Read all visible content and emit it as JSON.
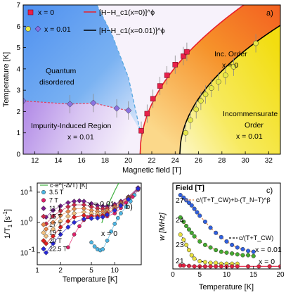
{
  "chart_data": [
    {
      "panel": "a)",
      "type": "phase-diagram",
      "xlabel": "Magnetic field [T]",
      "ylabel": "Temperature [K]",
      "xlim": [
        11,
        33
      ],
      "ylim": [
        0,
        7
      ],
      "xticks": [
        12,
        14,
        16,
        18,
        20,
        22,
        24,
        26,
        28,
        30,
        32
      ],
      "yticks": [
        0,
        1,
        2,
        3,
        4,
        5,
        6,
        7
      ],
      "legend": {
        "markers": [
          {
            "name": "x = 0",
            "marker": "square",
            "color": "#e8204a"
          },
          {
            "name": "x = 0.01",
            "marker": "circle+diamond",
            "color": "#9ac83c"
          }
        ],
        "lines": [
          {
            "name": "[H−H_c1(x=0)]^ϕ",
            "color": "#e8202a"
          },
          {
            "name": "[H−H_c1(x=0.01)]^ϕ",
            "color": "#000000"
          }
        ]
      },
      "regions": [
        {
          "name": "Quantum disordered"
        },
        {
          "name": "Inc. Order x = 0"
        },
        {
          "name": "Incommensurate Order x = 0.01"
        },
        {
          "name": "Impurity-Induced Region x = 0.01"
        }
      ],
      "series": [
        {
          "name": "x = 0",
          "marker": "square",
          "color": "#e8204a",
          "x": [
            21.1,
            21.6,
            22.1,
            22.7,
            23.3,
            24.0,
            24.7,
            25.0
          ],
          "y": [
            1.1,
            1.9,
            2.6,
            3.2,
            3.7,
            4.2,
            4.6,
            4.8
          ]
        },
        {
          "name": "x = 0.01 (circles)",
          "marker": "circle",
          "color": "#e6e84a",
          "x": [
            24.9,
            25.3,
            25.8,
            26.2,
            26.6,
            27.1,
            27.7,
            28.3,
            29.0,
            30.9
          ],
          "y": [
            1.0,
            1.6,
            2.1,
            2.5,
            2.8,
            3.1,
            3.4,
            3.7,
            4.1,
            5.2
          ]
        },
        {
          "name": "x = 0.01 (diamonds)",
          "marker": "diamond",
          "color": "#8a72e0",
          "x": [
            11.0,
            15.0,
            17.0,
            19.0,
            20.0
          ],
          "y": [
            2.5,
            2.35,
            2.4,
            2.15,
            2.05
          ]
        }
      ]
    },
    {
      "panel": "b)",
      "type": "scatter",
      "xlabel": "Temperature [K]",
      "ylabel": "1/T1 [s^-1]",
      "xscale": "log",
      "yscale": "log",
      "xlim": [
        1,
        22
      ],
      "ylim": [
        0.04,
        20
      ],
      "xticks": [
        1,
        2,
        5,
        10
      ],
      "xticklabels": [
        "1",
        "2",
        "5",
        "10"
      ],
      "yticks": [
        0.1,
        1,
        10
      ],
      "yticklabels": [
        "10^-1",
        "10^0",
        "10^1"
      ],
      "fit_label": "c·e^(-Δ/T) [K]",
      "annotations": [
        "x = 0.01",
        "x = 0"
      ],
      "series": [
        {
          "name": "3.5 T",
          "marker": "circle",
          "color": "#4db6e4",
          "x": [
            5,
            5.5,
            6,
            6.5,
            7,
            8,
            9,
            10,
            11,
            12,
            14,
            16,
            18,
            20
          ],
          "y": [
            0.22,
            0.16,
            0.13,
            0.12,
            0.13,
            0.25,
            0.5,
            0.9,
            1.4,
            2.0,
            3.3,
            5.0,
            8.0,
            12
          ]
        },
        {
          "name": "7 T",
          "marker": "circle",
          "color": "#e0206a",
          "x": [
            2.5,
            3,
            3.5,
            4,
            4.5,
            5,
            6,
            7,
            8,
            10,
            12,
            14,
            17,
            20
          ],
          "y": [
            0.15,
            0.4,
            0.75,
            1.2,
            1.5,
            1.7,
            1.7,
            1.6,
            1.6,
            2.0,
            3.0,
            4.5,
            7.0,
            12
          ]
        },
        {
          "name": "11 T",
          "marker": "diamond",
          "color": "#7a1e8c",
          "x": [
            1.3,
            1.6,
            2,
            2.5,
            3,
            3.5,
            4,
            5,
            6,
            7,
            8,
            10,
            12,
            15,
            20
          ],
          "y": [
            1.5,
            2.5,
            3.5,
            4.5,
            5.0,
            5.2,
            5.0,
            4.2,
            3.6,
            3.4,
            3.4,
            4.0,
            5.0,
            7.0,
            14
          ]
        },
        {
          "name": "15 T",
          "marker": "diamond",
          "color": "#cc2a4a",
          "x": [
            1.3,
            1.6,
            2,
            2.5,
            3,
            4,
            5,
            6,
            7,
            8,
            10,
            12,
            15,
            20
          ],
          "y": [
            0.9,
            1.6,
            2.4,
            3.3,
            3.8,
            3.8,
            3.3,
            2.9,
            2.8,
            2.9,
            3.6,
            4.7,
            6.8,
            13
          ]
        },
        {
          "name": "17 T",
          "marker": "diamond",
          "color": "#e8874a",
          "x": [
            1.3,
            1.6,
            2,
            2.5,
            3,
            4,
            5,
            6,
            7,
            8,
            10,
            12,
            15,
            20
          ],
          "y": [
            0.6,
            1.0,
            1.7,
            2.3,
            2.8,
            2.9,
            2.5,
            2.3,
            2.3,
            2.5,
            3.2,
            4.3,
            6.5,
            13
          ]
        },
        {
          "name": "19 T",
          "marker": "diamond",
          "color": "#f0c080",
          "x": [
            1.3,
            1.6,
            2,
            2.5,
            3,
            4,
            5,
            6,
            7,
            8,
            10,
            12,
            15,
            20
          ],
          "y": [
            0.35,
            0.6,
            1.1,
            1.6,
            2.0,
            2.2,
            2.0,
            1.9,
            1.9,
            2.2,
            2.9,
            4.0,
            6.2,
            13
          ]
        },
        {
          "name": "20 T",
          "marker": "diamond",
          "color": "#e02020",
          "x": [
            1.3,
            1.6,
            2,
            2.5,
            3,
            4,
            5,
            6,
            7,
            8,
            10,
            12,
            15,
            20
          ],
          "y": [
            0.2,
            0.35,
            0.7,
            1.1,
            1.5,
            1.7,
            1.6,
            1.6,
            1.7,
            2.0,
            2.7,
            3.8,
            6.0,
            13
          ]
        },
        {
          "name": "22.5 T",
          "marker": "diamond",
          "color": "#2828d8",
          "x": [
            1.3,
            1.6,
            2,
            2.5,
            3,
            4,
            5,
            6,
            7,
            8,
            10,
            12,
            15,
            20
          ],
          "y": [
            0.1,
            0.2,
            0.4,
            0.7,
            1.0,
            1.3,
            1.35,
            1.4,
            1.5,
            1.8,
            2.5,
            3.6,
            5.8,
            13
          ]
        }
      ]
    },
    {
      "panel": "c)",
      "type": "scatter",
      "xlabel": "Temperature [K]",
      "ylabel": "w [MHz]",
      "xlim": [
        0,
        20
      ],
      "xticks": [
        0,
        5,
        10,
        15,
        20
      ],
      "field_header": "Field [T]",
      "fields": [
        "27",
        "24",
        "23",
        "21"
      ],
      "fit_labels": [
        "c/(T+T_CW)+b·(T_N−T)^β",
        "c/(T+T_CW)"
      ],
      "annotations": [
        "x = 0.01",
        "x = 0"
      ],
      "series": [
        {
          "name": "27",
          "marker": "circle",
          "color": "#3060e0",
          "x": [
            1.4,
            2,
            2.5,
            3,
            3.5,
            4,
            4.5,
            5,
            6,
            7,
            8,
            9,
            10,
            11,
            12,
            13,
            14,
            15
          ],
          "y": [
            0.86,
            0.83,
            0.8,
            0.77,
            0.74,
            0.7,
            0.66,
            0.62,
            0.55,
            0.48,
            0.42,
            0.37,
            0.32,
            0.28,
            0.25,
            0.23,
            0.21,
            0.2
          ]
        },
        {
          "name": "24",
          "marker": "circle",
          "color": "#44aa30",
          "x": [
            1.4,
            2,
            2.5,
            3,
            3.5,
            4,
            5,
            6,
            7,
            8,
            9,
            10,
            11,
            12,
            13,
            14,
            15
          ],
          "y": [
            0.6,
            0.55,
            0.5,
            0.46,
            0.42,
            0.38,
            0.32,
            0.28,
            0.25,
            0.22,
            0.2,
            0.19,
            0.18,
            0.17,
            0.16,
            0.16,
            0.15
          ]
        },
        {
          "name": "23",
          "marker": "circle",
          "color": "#e8e040",
          "x": [
            1.4,
            2,
            2.5,
            3,
            3.5,
            4,
            5,
            6,
            7,
            8,
            9,
            10,
            11,
            12
          ],
          "y": [
            0.4,
            0.34,
            0.28,
            0.22,
            0.16,
            0.12,
            0.09,
            0.08,
            0.07,
            0.07,
            0.06,
            0.06,
            0.06,
            0.06
          ]
        },
        {
          "name": "21",
          "marker": "circle",
          "color": "#e02040",
          "x": [
            1.4,
            2,
            3,
            4,
            5,
            6,
            7,
            8,
            9,
            10,
            11,
            12,
            14,
            16,
            18,
            20
          ],
          "y": [
            0.04,
            0.04,
            0.035,
            0.03,
            0.03,
            0.03,
            0.03,
            0.03,
            0.03,
            0.03,
            0.03,
            0.03,
            0.03,
            0.03,
            0.03,
            0.03
          ]
        }
      ]
    }
  ],
  "panel_labels": [
    "a)",
    "b)",
    "c)"
  ]
}
